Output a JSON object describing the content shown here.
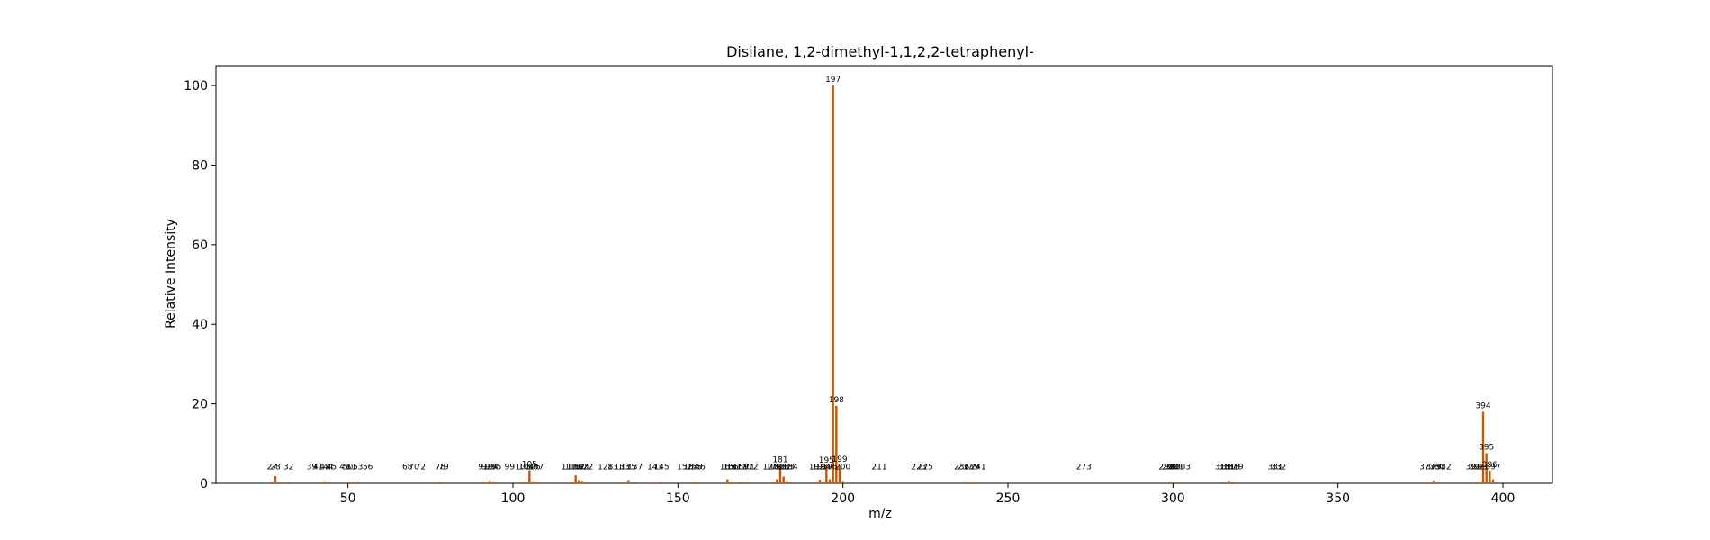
{
  "chart_data": {
    "type": "bar",
    "title": "Disilane, 1,2-dimethyl-1,1,2,2-tetraphenyl-",
    "xlabel": "m/z",
    "ylabel": "Relative Intensity",
    "xlim": [
      10,
      415
    ],
    "ylim": [
      0,
      105
    ],
    "xticks": [
      50,
      100,
      150,
      200,
      250,
      300,
      350,
      400
    ],
    "yticks": [
      0,
      20,
      40,
      60,
      80,
      100
    ],
    "bar_color": "#cc5500",
    "peaks": [
      {
        "mz": 27,
        "intensity": 0.4,
        "label": "27"
      },
      {
        "mz": 28,
        "intensity": 1.8,
        "label": "28"
      },
      {
        "mz": 32,
        "intensity": 0.3,
        "label": "32"
      },
      {
        "mz": 39,
        "intensity": 0.2,
        "label": "39"
      },
      {
        "mz": 41,
        "intensity": 0.2,
        "label": "41"
      },
      {
        "mz": 43,
        "intensity": 0.5,
        "label": "43"
      },
      {
        "mz": 44,
        "intensity": 0.4,
        "label": "44"
      },
      {
        "mz": 45,
        "intensity": 0.2,
        "label": "45"
      },
      {
        "mz": 49,
        "intensity": 0.2,
        "label": "49"
      },
      {
        "mz": 50,
        "intensity": 0.2,
        "label": "50"
      },
      {
        "mz": 51,
        "intensity": 0.3,
        "label": "51"
      },
      {
        "mz": 53,
        "intensity": 0.4,
        "label": "53"
      },
      {
        "mz": 56,
        "intensity": 0.2,
        "label": "56"
      },
      {
        "mz": 68,
        "intensity": 0.2,
        "label": "68"
      },
      {
        "mz": 70,
        "intensity": 0.2,
        "label": "70"
      },
      {
        "mz": 72,
        "intensity": 0.2,
        "label": "72"
      },
      {
        "mz": 78,
        "intensity": 0.3,
        "label": "78"
      },
      {
        "mz": 79,
        "intensity": 0.2,
        "label": "79"
      },
      {
        "mz": 91,
        "intensity": 0.3,
        "label": "91"
      },
      {
        "mz": 92,
        "intensity": 0.2,
        "label": "92"
      },
      {
        "mz": 93,
        "intensity": 0.6,
        "label": "93"
      },
      {
        "mz": 94,
        "intensity": 0.3,
        "label": "94"
      },
      {
        "mz": 95,
        "intensity": 0.2,
        "label": "95"
      },
      {
        "mz": 99,
        "intensity": 0.2,
        "label": "99"
      },
      {
        "mz": 103,
        "intensity": 0.3,
        "label": "103"
      },
      {
        "mz": 104,
        "intensity": 0.2,
        "label": "104"
      },
      {
        "mz": 105,
        "intensity": 3.3,
        "label": "105"
      },
      {
        "mz": 106,
        "intensity": 0.4,
        "label": "106"
      },
      {
        "mz": 107,
        "intensity": 0.3,
        "label": "107"
      },
      {
        "mz": 117,
        "intensity": 0.2,
        "label": "117"
      },
      {
        "mz": 118,
        "intensity": 0.3,
        "label": "118"
      },
      {
        "mz": 119,
        "intensity": 2.0,
        "label": "119"
      },
      {
        "mz": 120,
        "intensity": 0.8,
        "label": "120"
      },
      {
        "mz": 121,
        "intensity": 0.6,
        "label": "121"
      },
      {
        "mz": 122,
        "intensity": 0.3,
        "label": "122"
      },
      {
        "mz": 128,
        "intensity": 0.2,
        "label": "128"
      },
      {
        "mz": 131,
        "intensity": 0.2,
        "label": "131"
      },
      {
        "mz": 133,
        "intensity": 0.2,
        "label": "133"
      },
      {
        "mz": 135,
        "intensity": 0.8,
        "label": "135"
      },
      {
        "mz": 137,
        "intensity": 0.3,
        "label": "137"
      },
      {
        "mz": 143,
        "intensity": 0.2,
        "label": "143"
      },
      {
        "mz": 145,
        "intensity": 0.3,
        "label": "145"
      },
      {
        "mz": 152,
        "intensity": 0.2,
        "label": "152"
      },
      {
        "mz": 154,
        "intensity": 0.2,
        "label": "154"
      },
      {
        "mz": 155,
        "intensity": 0.3,
        "label": "155"
      },
      {
        "mz": 156,
        "intensity": 0.2,
        "label": "156"
      },
      {
        "mz": 165,
        "intensity": 1.0,
        "label": "165"
      },
      {
        "mz": 166,
        "intensity": 0.3,
        "label": "166"
      },
      {
        "mz": 167,
        "intensity": 0.2,
        "label": "167"
      },
      {
        "mz": 169,
        "intensity": 0.3,
        "label": "169"
      },
      {
        "mz": 170,
        "intensity": 0.2,
        "label": "170"
      },
      {
        "mz": 171,
        "intensity": 0.3,
        "label": "171"
      },
      {
        "mz": 172,
        "intensity": 0.2,
        "label": "172"
      },
      {
        "mz": 178,
        "intensity": 0.2,
        "label": "178"
      },
      {
        "mz": 179,
        "intensity": 0.3,
        "label": "179"
      },
      {
        "mz": 180,
        "intensity": 1.0,
        "label": "180"
      },
      {
        "mz": 181,
        "intensity": 4.4,
        "label": "181"
      },
      {
        "mz": 182,
        "intensity": 1.7,
        "label": "182"
      },
      {
        "mz": 183,
        "intensity": 0.6,
        "label": "183"
      },
      {
        "mz": 184,
        "intensity": 0.3,
        "label": "184"
      },
      {
        "mz": 192,
        "intensity": 0.3,
        "label": "192"
      },
      {
        "mz": 193,
        "intensity": 0.9,
        "label": "193"
      },
      {
        "mz": 194,
        "intensity": 0.4,
        "label": "194"
      },
      {
        "mz": 195,
        "intensity": 4.3,
        "label": "195"
      },
      {
        "mz": 196,
        "intensity": 1.0,
        "label": "196"
      },
      {
        "mz": 197,
        "intensity": 100.0,
        "label": "197"
      },
      {
        "mz": 198,
        "intensity": 19.5,
        "label": "198"
      },
      {
        "mz": 199,
        "intensity": 4.5,
        "label": "199"
      },
      {
        "mz": 200,
        "intensity": 0.6,
        "label": "200"
      },
      {
        "mz": 211,
        "intensity": 0.2,
        "label": "211"
      },
      {
        "mz": 223,
        "intensity": 0.2,
        "label": "223"
      },
      {
        "mz": 225,
        "intensity": 0.2,
        "label": "225"
      },
      {
        "mz": 236,
        "intensity": 0.2,
        "label": "236"
      },
      {
        "mz": 237,
        "intensity": 0.3,
        "label": "237"
      },
      {
        "mz": 239,
        "intensity": 0.2,
        "label": "239"
      },
      {
        "mz": 241,
        "intensity": 0.2,
        "label": "241"
      },
      {
        "mz": 273,
        "intensity": 0.2,
        "label": "273"
      },
      {
        "mz": 298,
        "intensity": 0.2,
        "label": "298"
      },
      {
        "mz": 299,
        "intensity": 0.3,
        "label": "299"
      },
      {
        "mz": 300,
        "intensity": 0.2,
        "label": "300"
      },
      {
        "mz": 301,
        "intensity": 0.2,
        "label": "301"
      },
      {
        "mz": 303,
        "intensity": 0.2,
        "label": "303"
      },
      {
        "mz": 315,
        "intensity": 0.3,
        "label": "315"
      },
      {
        "mz": 316,
        "intensity": 0.2,
        "label": "316"
      },
      {
        "mz": 317,
        "intensity": 0.6,
        "label": "317"
      },
      {
        "mz": 318,
        "intensity": 0.3,
        "label": "318"
      },
      {
        "mz": 319,
        "intensity": 0.2,
        "label": "319"
      },
      {
        "mz": 331,
        "intensity": 0.2,
        "label": "331"
      },
      {
        "mz": 332,
        "intensity": 0.2,
        "label": "332"
      },
      {
        "mz": 377,
        "intensity": 0.2,
        "label": "377"
      },
      {
        "mz": 379,
        "intensity": 0.7,
        "label": "379"
      },
      {
        "mz": 380,
        "intensity": 0.3,
        "label": "380"
      },
      {
        "mz": 382,
        "intensity": 0.2,
        "label": "382"
      },
      {
        "mz": 391,
        "intensity": 0.2,
        "label": "391"
      },
      {
        "mz": 392,
        "intensity": 0.3,
        "label": "392"
      },
      {
        "mz": 393,
        "intensity": 0.2,
        "label": "393"
      },
      {
        "mz": 394,
        "intensity": 18.0,
        "label": "394"
      },
      {
        "mz": 395,
        "intensity": 7.6,
        "label": "395"
      },
      {
        "mz": 396,
        "intensity": 3.2,
        "label": "396"
      },
      {
        "mz": 397,
        "intensity": 1.0,
        "label": "397"
      }
    ]
  }
}
